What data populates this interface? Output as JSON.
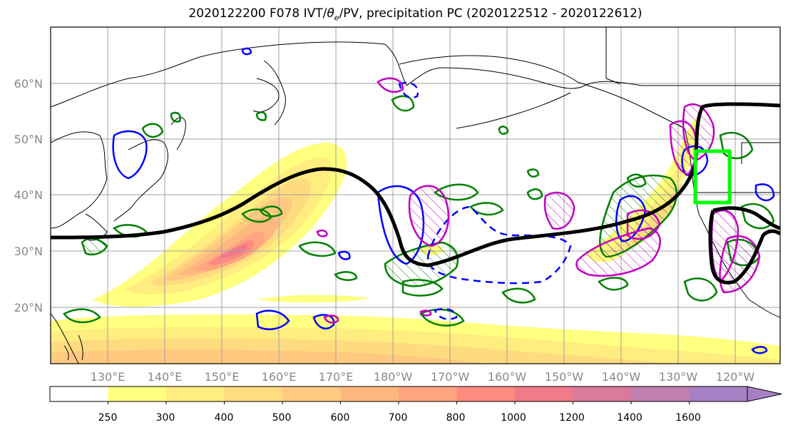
{
  "title": {
    "prefix": "2020122200 F078 IVT/",
    "theta": "θ",
    "sub": "e",
    "suffix": "/PV, precipitation PC (2020122512 - 2020122612)"
  },
  "map": {
    "lat_labels": [
      "60°N",
      "50°N",
      "40°N",
      "30°N",
      "20°N"
    ],
    "lat_values": [
      60,
      50,
      40,
      30,
      20
    ],
    "lon_labels": [
      "130°E",
      "140°E",
      "150°E",
      "160°E",
      "170°E",
      "180°W",
      "170°W",
      "160°W",
      "150°W",
      "140°W",
      "130°W",
      "120°W"
    ],
    "lon_values": [
      130,
      140,
      150,
      160,
      170,
      180,
      190,
      200,
      210,
      220,
      230,
      240
    ],
    "extent": {
      "lon": [
        120,
        248
      ],
      "lat": [
        10,
        70
      ]
    }
  },
  "colorbar": {
    "ticks": [
      "250",
      "300",
      "400",
      "500",
      "600",
      "700",
      "800",
      "1000",
      "1200",
      "1400",
      "1600"
    ],
    "colors": [
      "#ffffff",
      "#ffff80",
      "#ffed80",
      "#ffdb80",
      "#ffc980",
      "#ffb780",
      "#ffa580",
      "#ff8a80",
      "#f07a8a",
      "#d87a9a",
      "#bf80b0",
      "#a680c4"
    ],
    "extend": "max"
  },
  "colors": {
    "dynamic_tropopause": "#000000",
    "theta_e_positive": "#008000",
    "pv_contour": "#0000ff",
    "precip_pc": "#c000c0",
    "target_box": "#00ff00"
  }
}
